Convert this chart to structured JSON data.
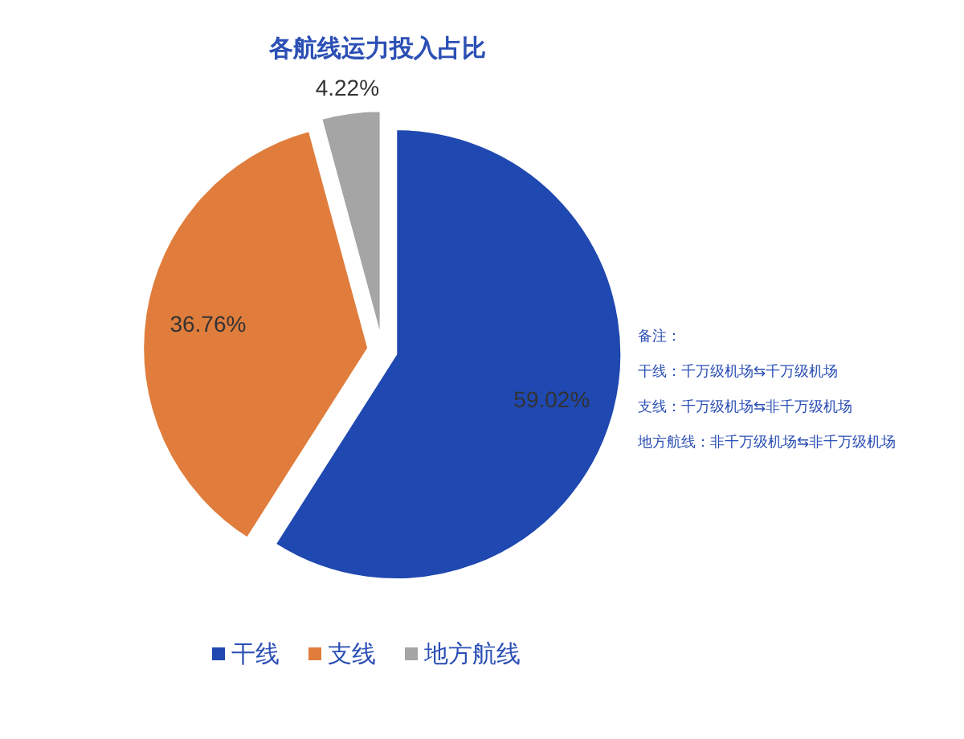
{
  "chart_data": {
    "type": "pie",
    "title": "各航线运力投入占比",
    "categories": [
      "干线",
      "支线",
      "地方航线"
    ],
    "values": [
      59.02,
      36.76,
      4.22
    ],
    "colors": [
      "#1f48b0",
      "#e07d3c",
      "#a5a5a5"
    ],
    "value_labels": [
      "59.02%",
      "36.76%",
      "4.22%"
    ],
    "legend": "bottom",
    "annotations": [
      "备注：",
      "干线：千万级机场⇆千万级机场",
      "支线：千万级机场⇆非千万级机场",
      "地方航线：非千万级机场⇆非千万级机场"
    ]
  }
}
